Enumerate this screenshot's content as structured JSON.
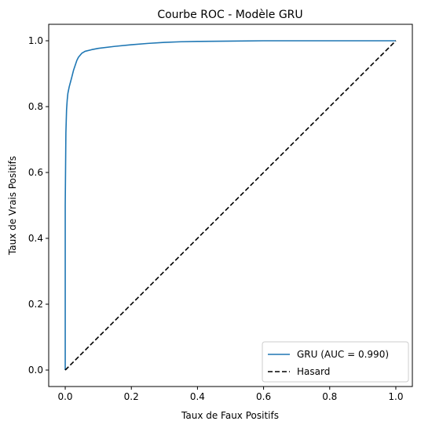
{
  "chart_data": {
    "type": "line",
    "title": "Courbe ROC - Modèle GRU",
    "xlabel": "Taux de Faux Positifs",
    "ylabel": "Taux de Vrais Positifs",
    "xlim": [
      -0.05,
      1.05
    ],
    "ylim": [
      -0.05,
      1.05
    ],
    "xticks": [
      "0.0",
      "0.2",
      "0.4",
      "0.6",
      "0.8",
      "1.0"
    ],
    "yticks": [
      "0.0",
      "0.2",
      "0.4",
      "0.6",
      "0.8",
      "1.0"
    ],
    "grid": false,
    "legend_position": "lower-right",
    "series": [
      {
        "name": "GRU (AUC = 0.990)",
        "color": "#1f77b4",
        "style": "solid",
        "x": [
          0.0,
          0.0,
          0.002,
          0.004,
          0.006,
          0.008,
          0.012,
          0.016,
          0.02,
          0.025,
          0.03,
          0.035,
          0.04,
          0.05,
          0.06,
          0.08,
          0.1,
          0.15,
          0.2,
          0.25,
          0.3,
          0.35,
          0.4,
          0.5,
          0.6,
          0.7,
          0.8,
          0.9,
          1.0
        ],
        "y": [
          0.0,
          0.5,
          0.72,
          0.79,
          0.82,
          0.84,
          0.86,
          0.875,
          0.89,
          0.91,
          0.925,
          0.94,
          0.95,
          0.962,
          0.968,
          0.973,
          0.977,
          0.983,
          0.988,
          0.992,
          0.995,
          0.997,
          0.998,
          0.999,
          1.0,
          1.0,
          1.0,
          1.0,
          1.0
        ]
      },
      {
        "name": "Hasard",
        "color": "#000000",
        "style": "dashed",
        "x": [
          0.0,
          1.0
        ],
        "y": [
          0.0,
          1.0
        ]
      }
    ]
  }
}
